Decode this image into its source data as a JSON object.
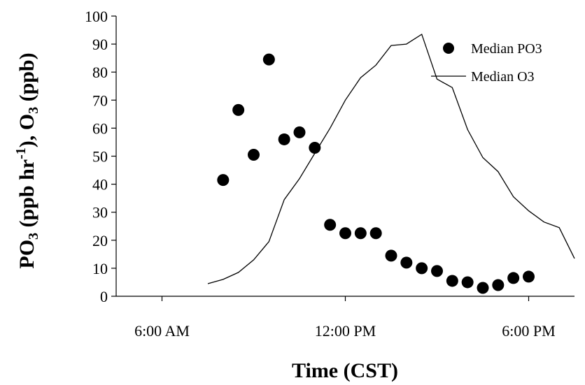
{
  "chart_data": {
    "type": "scatter",
    "xlabel": "Time (CST)",
    "ylabel_parts": {
      "a": "PO",
      "a_sub": "3",
      "b": " (ppb hr",
      "b_sup": "-1",
      "c": "), O",
      "c_sub": "3",
      "d": " (ppb)"
    },
    "xlim": [
      6.0,
      19.5
    ],
    "ylim": [
      0,
      100
    ],
    "x_ticks": [
      {
        "x": 6,
        "label": "6:00 AM"
      },
      {
        "x": 12,
        "label": "12:00 PM"
      },
      {
        "x": 18,
        "label": "6:00 PM"
      }
    ],
    "y_ticks": [
      0,
      10,
      20,
      30,
      40,
      50,
      60,
      70,
      80,
      90,
      100
    ],
    "y_tick_labels": [
      "0",
      "10",
      "20",
      "30",
      "40",
      "50",
      "60",
      "70",
      "80",
      "90",
      "100"
    ],
    "legend_placement": "top-right",
    "grid": false,
    "series": [
      {
        "name": "Median PO3",
        "kind": "scatter",
        "color": "#000000",
        "points": [
          {
            "x": 8.0,
            "y": 41.5
          },
          {
            "x": 8.5,
            "y": 66.5
          },
          {
            "x": 9.0,
            "y": 50.5
          },
          {
            "x": 9.5,
            "y": 84.5
          },
          {
            "x": 10.0,
            "y": 56.0
          },
          {
            "x": 10.5,
            "y": 58.5
          },
          {
            "x": 11.0,
            "y": 53.0
          },
          {
            "x": 11.5,
            "y": 25.5
          },
          {
            "x": 12.0,
            "y": 22.5
          },
          {
            "x": 12.5,
            "y": 22.5
          },
          {
            "x": 13.0,
            "y": 22.5
          },
          {
            "x": 13.5,
            "y": 14.5
          },
          {
            "x": 14.0,
            "y": 12.0
          },
          {
            "x": 14.5,
            "y": 10.0
          },
          {
            "x": 15.0,
            "y": 9.0
          },
          {
            "x": 15.5,
            "y": 5.5
          },
          {
            "x": 16.0,
            "y": 5.0
          },
          {
            "x": 16.5,
            "y": 3.0
          },
          {
            "x": 17.0,
            "y": 4.0
          },
          {
            "x": 17.5,
            "y": 6.5
          },
          {
            "x": 18.0,
            "y": 7.0
          }
        ]
      },
      {
        "name": "Median O3",
        "kind": "line",
        "color": "#000000",
        "points": [
          {
            "x": 7.5,
            "y": 4.5
          },
          {
            "x": 8.0,
            "y": 6.0
          },
          {
            "x": 8.5,
            "y": 8.5
          },
          {
            "x": 9.0,
            "y": 13.0
          },
          {
            "x": 9.5,
            "y": 19.5
          },
          {
            "x": 10.0,
            "y": 34.5
          },
          {
            "x": 10.5,
            "y": 42.0
          },
          {
            "x": 11.0,
            "y": 51.0
          },
          {
            "x": 11.5,
            "y": 60.0
          },
          {
            "x": 12.0,
            "y": 70.0
          },
          {
            "x": 12.5,
            "y": 78.0
          },
          {
            "x": 13.0,
            "y": 82.5
          },
          {
            "x": 13.5,
            "y": 89.5
          },
          {
            "x": 14.0,
            "y": 90.0
          },
          {
            "x": 14.5,
            "y": 93.5
          },
          {
            "x": 15.0,
            "y": 77.5
          },
          {
            "x": 15.5,
            "y": 74.5
          },
          {
            "x": 16.0,
            "y": 59.5
          },
          {
            "x": 16.5,
            "y": 49.5
          },
          {
            "x": 17.0,
            "y": 44.5
          },
          {
            "x": 17.5,
            "y": 35.5
          },
          {
            "x": 18.0,
            "y": 30.5
          },
          {
            "x": 18.5,
            "y": 26.5
          },
          {
            "x": 19.0,
            "y": 24.5
          },
          {
            "x": 19.5,
            "y": 13.5
          }
        ]
      }
    ]
  }
}
